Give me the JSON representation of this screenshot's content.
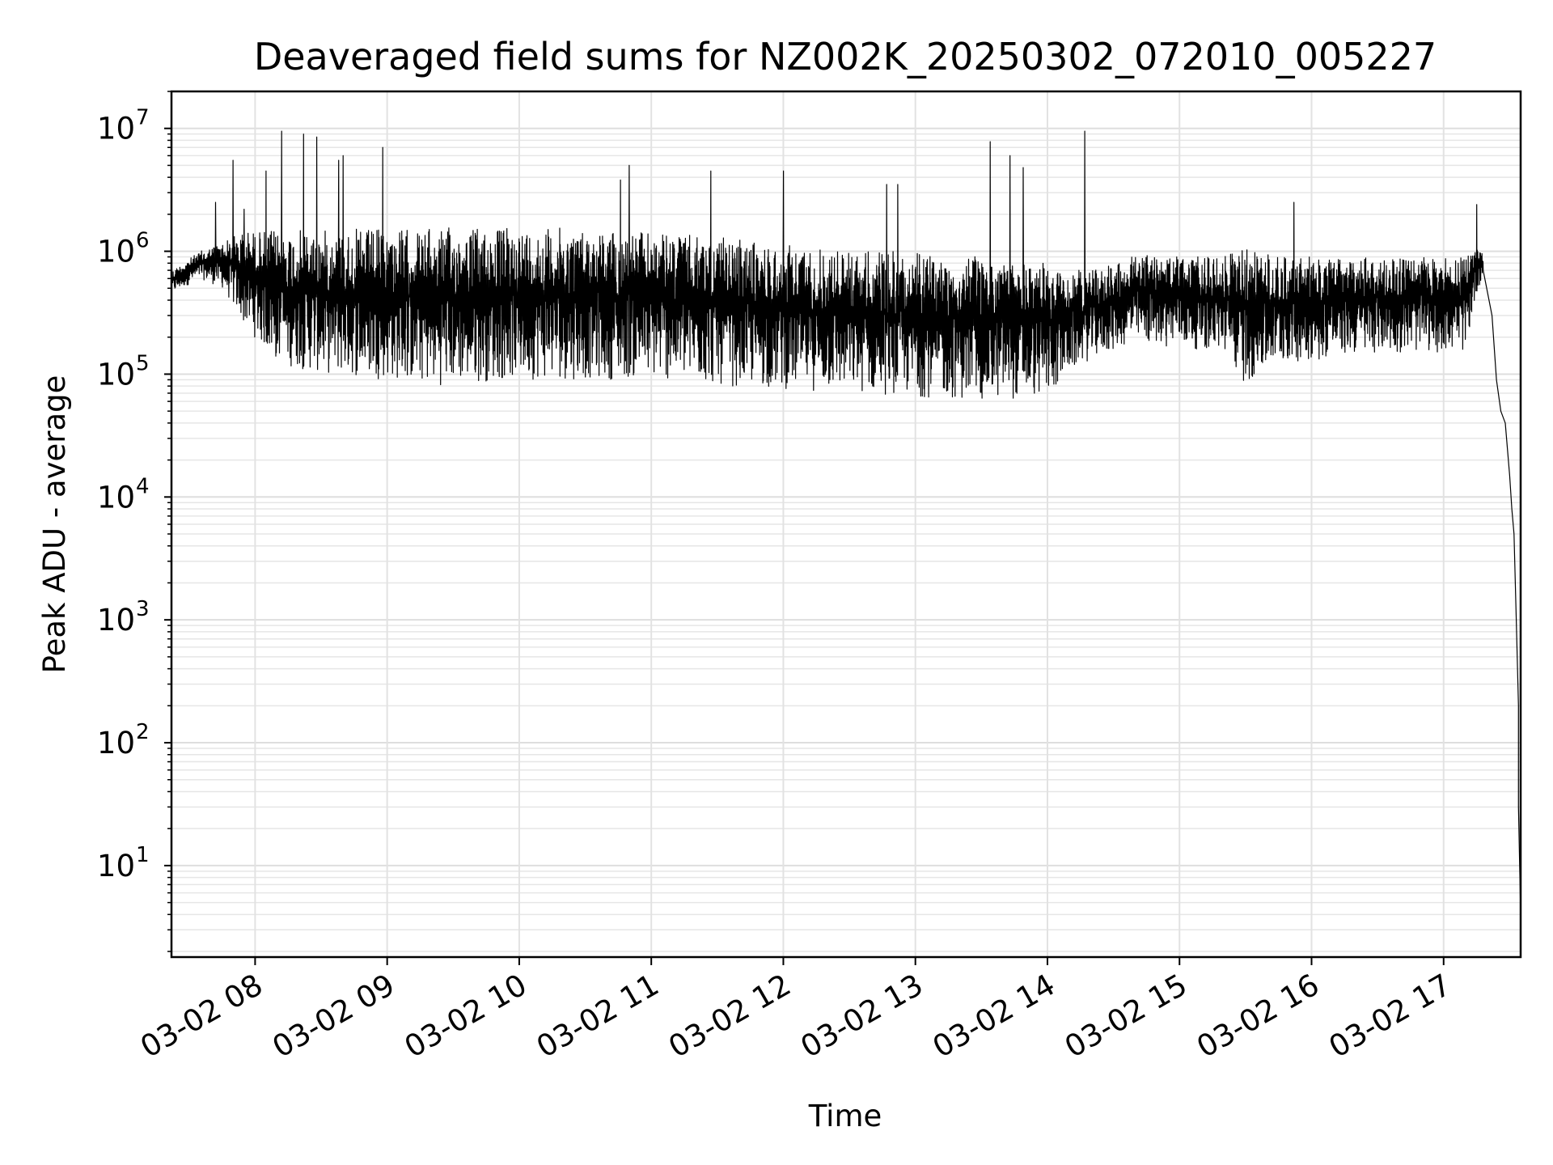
{
  "chart_data": {
    "type": "line",
    "title": "Deaveraged field sums for NZ002K_20250302_072010_005227",
    "xlabel": "Time",
    "ylabel": "Peak ADU - average",
    "yscale": "log",
    "ylim": [
      1.8,
      20000000
    ],
    "xlim": [
      "03-02 07:22",
      "03-02 17:35"
    ],
    "grid": true,
    "x_ticks": [
      {
        "value": "03-02 08:00",
        "label": "03-02 08"
      },
      {
        "value": "03-02 09:00",
        "label": "03-02 09"
      },
      {
        "value": "03-02 10:00",
        "label": "03-02 10"
      },
      {
        "value": "03-02 11:00",
        "label": "03-02 11"
      },
      {
        "value": "03-02 12:00",
        "label": "03-02 12"
      },
      {
        "value": "03-02 13:00",
        "label": "03-02 13"
      },
      {
        "value": "03-02 14:00",
        "label": "03-02 14"
      },
      {
        "value": "03-02 15:00",
        "label": "03-02 15"
      },
      {
        "value": "03-02 16:00",
        "label": "03-02 16"
      },
      {
        "value": "03-02 17:00",
        "label": "03-02 17"
      }
    ],
    "y_ticks": [
      {
        "value": 10,
        "base": "10",
        "exp": "1"
      },
      {
        "value": 100,
        "base": "10",
        "exp": "2"
      },
      {
        "value": 1000,
        "base": "10",
        "exp": "3"
      },
      {
        "value": 10000,
        "base": "10",
        "exp": "4"
      },
      {
        "value": 100000,
        "base": "10",
        "exp": "5"
      },
      {
        "value": 1000000,
        "base": "10",
        "exp": "6"
      },
      {
        "value": 10000000,
        "base": "10",
        "exp": "7"
      }
    ],
    "envelope": [
      {
        "t": "03-02 07:22",
        "low": 450000,
        "high": 700000
      },
      {
        "t": "03-02 07:35",
        "low": 600000,
        "high": 1000000
      },
      {
        "t": "03-02 07:45",
        "low": 500000,
        "high": 1200000
      },
      {
        "t": "03-02 07:55",
        "low": 250000,
        "high": 1500000
      },
      {
        "t": "03-02 08:10",
        "low": 120000,
        "high": 1500000
      },
      {
        "t": "03-02 08:30",
        "low": 100000,
        "high": 1500000
      },
      {
        "t": "03-02 09:00",
        "low": 90000,
        "high": 1550000
      },
      {
        "t": "03-02 09:20",
        "low": 80000,
        "high": 1550000
      },
      {
        "t": "03-02 09:40",
        "low": 85000,
        "high": 1600000
      },
      {
        "t": "03-02 10:00",
        "low": 90000,
        "high": 1600000
      },
      {
        "t": "03-02 10:30",
        "low": 90000,
        "high": 1550000
      },
      {
        "t": "03-02 11:00",
        "low": 90000,
        "high": 1450000
      },
      {
        "t": "03-02 11:30",
        "low": 80000,
        "high": 1300000
      },
      {
        "t": "03-02 12:00",
        "low": 75000,
        "high": 1150000
      },
      {
        "t": "03-02 12:30",
        "low": 70000,
        "high": 1050000
      },
      {
        "t": "03-02 13:00",
        "low": 65000,
        "high": 1000000
      },
      {
        "t": "03-02 13:30",
        "low": 60000,
        "high": 900000
      },
      {
        "t": "03-02 14:00",
        "low": 65000,
        "high": 800000
      },
      {
        "t": "03-02 14:15",
        "low": 120000,
        "high": 700000
      },
      {
        "t": "03-02 14:40",
        "low": 180000,
        "high": 950000
      },
      {
        "t": "03-02 15:20",
        "low": 150000,
        "high": 900000
      },
      {
        "t": "03-02 15:30",
        "low": 80000,
        "high": 1100000
      },
      {
        "t": "03-02 15:45",
        "low": 120000,
        "high": 900000
      },
      {
        "t": "03-02 16:30",
        "low": 150000,
        "high": 900000
      },
      {
        "t": "03-02 17:10",
        "low": 150000,
        "high": 900000
      },
      {
        "t": "03-02 17:15",
        "low": 450000,
        "high": 1300000
      },
      {
        "t": "03-02 17:18",
        "low": 650000,
        "high": 900000
      }
    ],
    "tail": [
      {
        "t": "03-02 17:18",
        "value": 700000
      },
      {
        "t": "03-02 17:22",
        "value": 300000
      },
      {
        "t": "03-02 17:24",
        "value": 90000
      },
      {
        "t": "03-02 17:26",
        "value": 50000
      },
      {
        "t": "03-02 17:28",
        "value": 40000
      },
      {
        "t": "03-02 17:30",
        "value": 15000
      },
      {
        "t": "03-02 17:31",
        "value": 8000
      },
      {
        "t": "03-02 17:32",
        "value": 5000
      },
      {
        "t": "03-02 17:33",
        "value": 1000
      },
      {
        "t": "03-02 17:34",
        "value": 200
      },
      {
        "t": "03-02 17:34",
        "value": 30
      },
      {
        "t": "03-02 17:35",
        "value": 4
      }
    ],
    "spikes": [
      {
        "t": "03-02 07:42",
        "value": 2500000
      },
      {
        "t": "03-02 07:50",
        "value": 5500000
      },
      {
        "t": "03-02 07:55",
        "value": 2200000
      },
      {
        "t": "03-02 08:05",
        "value": 4500000
      },
      {
        "t": "03-02 08:12",
        "value": 9500000
      },
      {
        "t": "03-02 08:22",
        "value": 9000000
      },
      {
        "t": "03-02 08:28",
        "value": 8500000
      },
      {
        "t": "03-02 08:38",
        "value": 5500000
      },
      {
        "t": "03-02 08:40",
        "value": 6000000
      },
      {
        "t": "03-02 08:58",
        "value": 7000000
      },
      {
        "t": "03-02 10:46",
        "value": 3800000
      },
      {
        "t": "03-02 10:50",
        "value": 5000000
      },
      {
        "t": "03-02 11:27",
        "value": 4500000
      },
      {
        "t": "03-02 12:00",
        "value": 4500000
      },
      {
        "t": "03-02 12:47",
        "value": 3500000
      },
      {
        "t": "03-02 12:52",
        "value": 3500000
      },
      {
        "t": "03-02 13:34",
        "value": 7800000
      },
      {
        "t": "03-02 13:43",
        "value": 6000000
      },
      {
        "t": "03-02 13:49",
        "value": 4800000
      },
      {
        "t": "03-02 14:17",
        "value": 9500000
      },
      {
        "t": "03-02 15:52",
        "value": 2500000
      },
      {
        "t": "03-02 17:15",
        "value": 2400000
      }
    ],
    "line_color": "#000000"
  }
}
